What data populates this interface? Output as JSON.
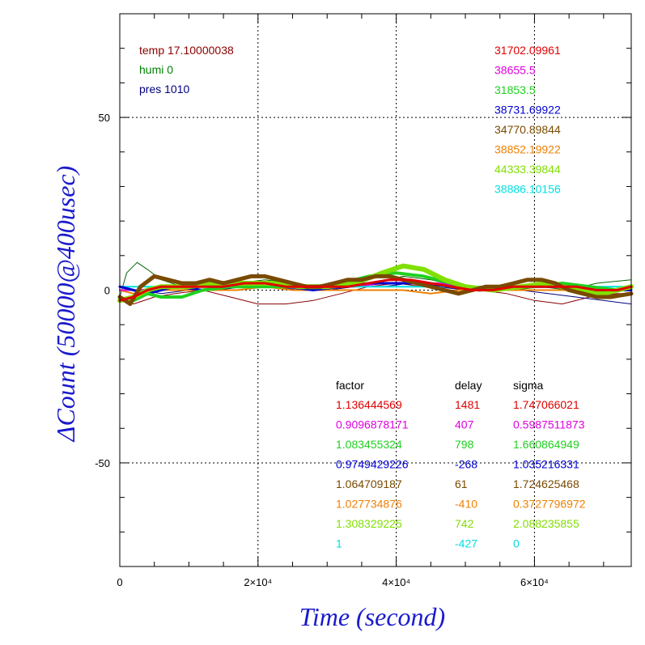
{
  "chart_data": {
    "type": "line",
    "xlabel": "Time (second)",
    "ylabel": "ΔCount (50000@400usec)",
    "xlim": [
      0,
      74000
    ],
    "ylim": [
      -80,
      80
    ],
    "grid": true,
    "x_ticks": [
      {
        "value": 0,
        "label": "0"
      },
      {
        "value": 20000,
        "label": "2×10⁴"
      },
      {
        "value": 40000,
        "label": "4×10⁴"
      },
      {
        "value": 60000,
        "label": "6×10⁴"
      }
    ],
    "y_ticks": [
      {
        "value": 50,
        "label": "50"
      },
      {
        "value": 0,
        "label": "0"
      },
      {
        "value": -50,
        "label": "-50"
      }
    ],
    "env": [
      {
        "text": "temp 17.10000038",
        "color": "#8b0000"
      },
      {
        "text": "humi 0",
        "color": "#008000"
      },
      {
        "text": "pres 1010",
        "color": "#000080"
      }
    ],
    "series_stats": [
      {
        "value": "31702.09961",
        "color": "#e00000"
      },
      {
        "value": "38655.5",
        "color": "#e000e0"
      },
      {
        "value": "31853.5",
        "color": "#20d020"
      },
      {
        "value": "38731.69922",
        "color": "#0000d0"
      },
      {
        "value": "34770.89844",
        "color": "#7a4a00"
      },
      {
        "value": "38852.19922",
        "color": "#f08000"
      },
      {
        "value": "44333.39844",
        "color": "#80e000"
      },
      {
        "value": "38886.10156",
        "color": "#00e0e0"
      }
    ],
    "table_headers": {
      "factor": "factor",
      "delay": "delay",
      "sigma": "sigma"
    },
    "table": [
      {
        "factor": "1.136444569",
        "delay": "1481",
        "sigma": "1.747066021",
        "color": "#e00000"
      },
      {
        "factor": "0.9096878171",
        "delay": "407",
        "sigma": "0.5987511873",
        "color": "#e000e0"
      },
      {
        "factor": "1.083455324",
        "delay": "798",
        "sigma": "1.660864949",
        "color": "#20d020"
      },
      {
        "factor": "0.9749429226",
        "delay": "-268",
        "sigma": "1.035216331",
        "color": "#0000d0"
      },
      {
        "factor": "1.064709187",
        "delay": "61",
        "sigma": "1.724625468",
        "color": "#7a4a00"
      },
      {
        "factor": "1.027734876",
        "delay": "-410",
        "sigma": "0.3727796972",
        "color": "#f08000"
      },
      {
        "factor": "1.308329225",
        "delay": "742",
        "sigma": "2.088235855",
        "color": "#80e000"
      },
      {
        "factor": "1",
        "delay": "-427",
        "sigma": "0",
        "color": "#00e0e0"
      }
    ],
    "series": [
      {
        "color": "#8b0000",
        "width": 1,
        "x": [
          0,
          2000,
          5000,
          8000,
          12000,
          16000,
          20000,
          24000,
          28000,
          32000,
          36000,
          40000,
          44000,
          48000,
          52000,
          56000,
          60000,
          64000,
          68000,
          72000,
          74000
        ],
        "y": [
          -3,
          -4,
          -2,
          -1,
          0,
          -2,
          -4,
          -4,
          -3,
          -1,
          1,
          2,
          1,
          0,
          0,
          -1,
          -3,
          -4,
          -2,
          -1,
          -1
        ]
      },
      {
        "color": "#006400",
        "width": 1,
        "x": [
          0,
          1000,
          2500,
          4000,
          6000,
          9000,
          13000,
          17000,
          21000,
          25000,
          29000,
          33000,
          37000,
          41000,
          45000,
          49000,
          53000,
          57000,
          61000,
          65000,
          69000,
          74000
        ],
        "y": [
          -2,
          5,
          8,
          6,
          3,
          1,
          0,
          2,
          3,
          2,
          1,
          1,
          2,
          4,
          3,
          1,
          0,
          0,
          1,
          0,
          2,
          3
        ]
      },
      {
        "color": "#000080",
        "width": 1,
        "x": [
          0,
          3000,
          6000,
          10000,
          14000,
          18000,
          22000,
          26000,
          30000,
          34000,
          38000,
          42000,
          46000,
          50000,
          54000,
          58000,
          62000,
          66000,
          70000,
          74000
        ],
        "y": [
          0,
          0,
          -1,
          0,
          0,
          1,
          1,
          0,
          0,
          1,
          1,
          2,
          1,
          0,
          0,
          0,
          -1,
          -2,
          -3,
          -4
        ]
      },
      {
        "color": "#f08000",
        "width": 2,
        "x": [
          0,
          2000,
          5000,
          9000,
          13000,
          17000,
          21000,
          25000,
          29000,
          33000,
          37000,
          41000,
          45000,
          49000,
          53000,
          57000,
          61000,
          65000,
          69000,
          74000
        ],
        "y": [
          0,
          -1,
          0,
          0,
          0,
          0,
          1,
          0,
          0,
          0,
          0,
          0,
          -1,
          0,
          0,
          0,
          0,
          0,
          0,
          0
        ]
      },
      {
        "color": "#e000e0",
        "width": 2,
        "x": [
          0,
          3000,
          6000,
          10000,
          14000,
          18000,
          22000,
          26000,
          30000,
          34000,
          38000,
          42000,
          46000,
          50000,
          54000,
          58000,
          62000,
          66000,
          70000,
          74000
        ],
        "y": [
          0,
          0,
          1,
          1,
          1,
          1,
          1,
          1,
          1,
          1,
          2,
          2,
          2,
          1,
          1,
          1,
          1,
          1,
          0,
          0
        ]
      },
      {
        "color": "#00e0e0",
        "width": 2,
        "x": [
          0,
          4000,
          8000,
          12000,
          16000,
          20000,
          24000,
          28000,
          32000,
          36000,
          40000,
          44000,
          48000,
          52000,
          56000,
          60000,
          64000,
          68000,
          72000,
          74000
        ],
        "y": [
          1,
          1,
          1,
          1,
          1,
          1,
          1,
          1,
          1,
          1,
          1,
          1,
          1,
          1,
          1,
          1,
          1,
          1,
          1,
          1
        ]
      },
      {
        "color": "#0000d0",
        "width": 3,
        "x": [
          0,
          2000,
          4000,
          6000,
          8000,
          12000,
          16000,
          20000,
          24000,
          28000,
          32000,
          36000,
          40000,
          44000,
          48000,
          52000,
          56000,
          60000,
          64000,
          68000,
          72000,
          74000
        ],
        "y": [
          1,
          0,
          -1,
          0,
          1,
          0,
          1,
          1,
          1,
          0,
          1,
          2,
          2,
          2,
          1,
          0,
          1,
          1,
          1,
          0,
          0,
          0
        ]
      },
      {
        "color": "#20d020",
        "width": 4,
        "x": [
          0,
          2000,
          4000,
          6000,
          9000,
          12000,
          16000,
          20000,
          24000,
          28000,
          32000,
          36000,
          40000,
          44000,
          48000,
          52000,
          56000,
          60000,
          64000,
          68000,
          72000,
          74000
        ],
        "y": [
          -3,
          -3,
          -1,
          -2,
          -2,
          0,
          1,
          1,
          1,
          1,
          2,
          4,
          5,
          4,
          2,
          0,
          1,
          1,
          2,
          1,
          0,
          1
        ]
      },
      {
        "color": "#80e000",
        "width": 6,
        "x": [
          0,
          2000,
          4000,
          6000,
          10000,
          14000,
          18000,
          22000,
          26000,
          30000,
          34000,
          38000,
          41000,
          44000,
          47000,
          50000,
          54000,
          58000,
          62000,
          66000,
          70000,
          74000
        ],
        "y": [
          -3,
          -2,
          0,
          1,
          1,
          2,
          2,
          2,
          1,
          1,
          2,
          5,
          7,
          6,
          3,
          1,
          0,
          1,
          2,
          0,
          -1,
          1
        ]
      },
      {
        "color": "#7a4a00",
        "width": 5,
        "x": [
          0,
          1500,
          3000,
          5000,
          7000,
          9000,
          11000,
          13000,
          15000,
          17000,
          19000,
          21000,
          23000,
          25000,
          27000,
          29000,
          31000,
          33000,
          35000,
          37000,
          39000,
          41000,
          43000,
          45000,
          47000,
          49000,
          51000,
          53000,
          55000,
          57000,
          59000,
          61000,
          63000,
          65000,
          67000,
          69000,
          71000,
          74000
        ],
        "y": [
          -2,
          -4,
          1,
          4,
          3,
          2,
          2,
          3,
          2,
          3,
          4,
          4,
          3,
          2,
          1,
          1,
          2,
          3,
          3,
          4,
          4,
          3,
          2,
          1,
          0,
          -1,
          0,
          1,
          1,
          2,
          3,
          3,
          2,
          0,
          -1,
          -2,
          -2,
          -1
        ]
      },
      {
        "color": "#e00000",
        "width": 3,
        "x": [
          0,
          2000,
          4000,
          6000,
          9000,
          12000,
          15000,
          18000,
          21000,
          24000,
          27000,
          30000,
          33000,
          36000,
          39000,
          42000,
          45000,
          48000,
          51000,
          54000,
          57000,
          60000,
          63000,
          66000,
          69000,
          72000,
          74000
        ],
        "y": [
          -3,
          -2,
          0,
          1,
          1,
          1,
          1,
          2,
          2,
          1,
          1,
          1,
          1,
          2,
          3,
          3,
          2,
          1,
          0,
          0,
          1,
          1,
          1,
          1,
          0,
          0,
          1
        ]
      }
    ]
  }
}
